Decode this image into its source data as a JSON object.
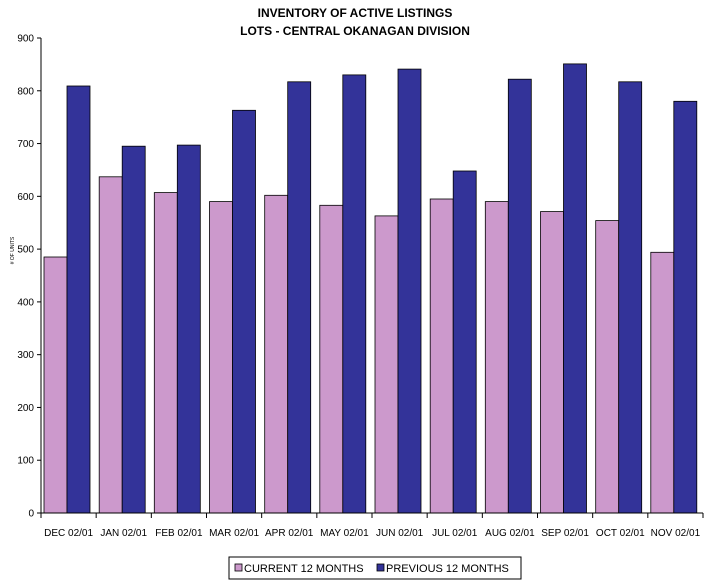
{
  "chart_data": {
    "type": "bar",
    "title": [
      "INVENTORY OF ACTIVE LISTINGS",
      "LOTS - CENTRAL OKANAGAN DIVISION"
    ],
    "xlabel": "",
    "ylabel": "# OF UNITS",
    "ylim": [
      0,
      900
    ],
    "yticks": [
      0,
      100,
      200,
      300,
      400,
      500,
      600,
      700,
      800,
      900
    ],
    "grid": false,
    "legend_position": "bottom",
    "categories": [
      "DEC 02/01",
      "JAN 02/01",
      "FEB 02/01",
      "MAR 02/01",
      "APR 02/01",
      "MAY 02/01",
      "JUN 02/01",
      "JUL 02/01",
      "AUG 02/01",
      "SEP 02/01",
      "OCT 02/01",
      "NOV 02/01"
    ],
    "series": [
      {
        "name": "CURRENT 12 MONTHS",
        "color": "#cc99cc",
        "values": [
          485,
          637,
          607,
          590,
          602,
          583,
          563,
          595,
          590,
          571,
          554,
          494
        ]
      },
      {
        "name": "PREVIOUS 12 MONTHS",
        "color": "#333399",
        "values": [
          809,
          695,
          697,
          763,
          817,
          830,
          841,
          648,
          822,
          851,
          817,
          780
        ]
      }
    ]
  }
}
